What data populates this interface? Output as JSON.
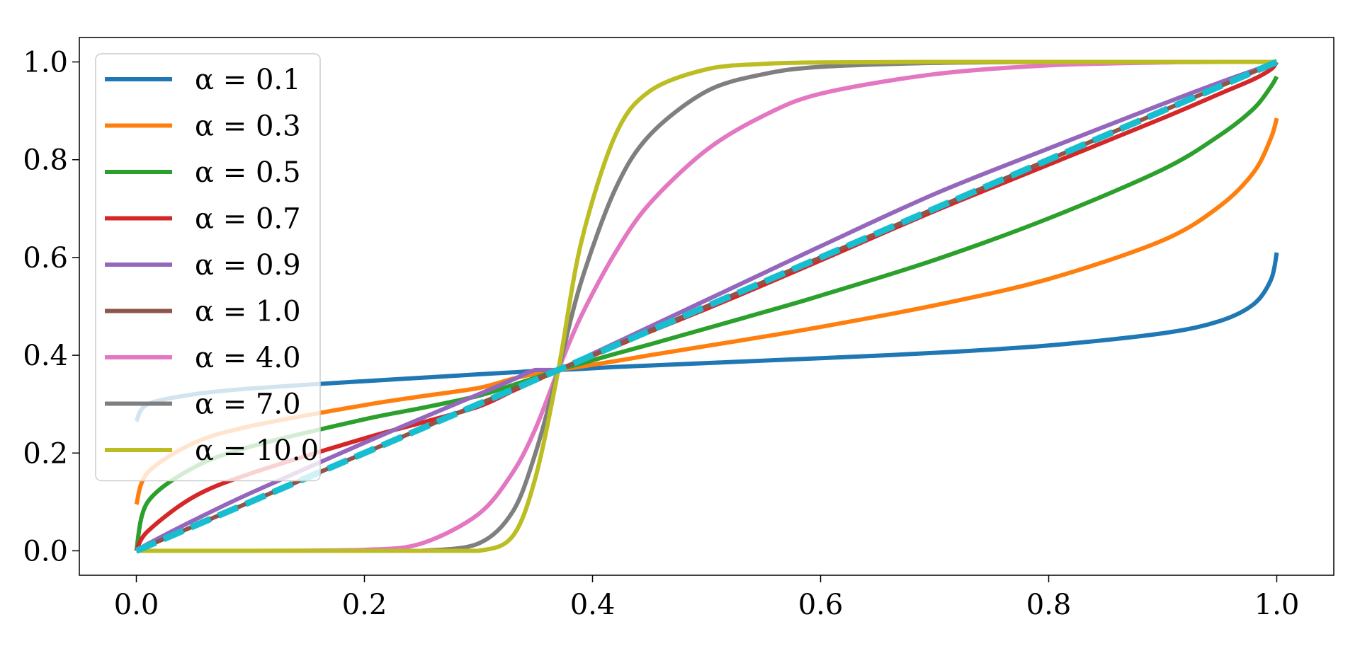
{
  "chart_data": {
    "type": "line",
    "title": "",
    "xlabel": "",
    "ylabel": "",
    "xlim": [
      -0.05,
      1.05
    ],
    "ylim": [
      -0.05,
      1.05
    ],
    "grid": false,
    "legend_position": "upper-left",
    "x_ticks": [
      {
        "value": 0.0,
        "label": "0.0"
      },
      {
        "value": 0.2,
        "label": "0.2"
      },
      {
        "value": 0.4,
        "label": "0.4"
      },
      {
        "value": 0.6,
        "label": "0.6"
      },
      {
        "value": 0.8,
        "label": "0.8"
      },
      {
        "value": 1.0,
        "label": "1.0"
      }
    ],
    "y_ticks": [
      {
        "value": 0.0,
        "label": "0.0"
      },
      {
        "value": 0.2,
        "label": "0.2"
      },
      {
        "value": 0.4,
        "label": "0.4"
      },
      {
        "value": 0.6,
        "label": "0.6"
      },
      {
        "value": 0.8,
        "label": "0.8"
      },
      {
        "value": 1.0,
        "label": "1.0"
      }
    ],
    "x": [
      0.0,
      0.01,
      0.05,
      0.1,
      0.2,
      0.25,
      0.3,
      0.33,
      0.35,
      0.37,
      0.39,
      0.42,
      0.45,
      0.5,
      0.55,
      0.6,
      0.7,
      0.8,
      0.9,
      0.95,
      0.98,
      0.995,
      1.0
    ],
    "series": [
      {
        "name": "α = 0.1",
        "color": "#1f77b4",
        "style": "solid",
        "values": [
          0.265,
          0.3,
          0.32,
          0.332,
          0.347,
          0.354,
          0.361,
          0.365,
          0.368,
          0.37,
          0.372,
          0.376,
          0.379,
          0.384,
          0.389,
          0.394,
          0.405,
          0.42,
          0.445,
          0.47,
          0.505,
          0.555,
          0.61
        ]
      },
      {
        "name": "α = 0.3",
        "color": "#ff7f0e",
        "style": "solid",
        "values": [
          0.095,
          0.16,
          0.22,
          0.255,
          0.298,
          0.316,
          0.333,
          0.352,
          0.362,
          0.37,
          0.377,
          0.388,
          0.4,
          0.419,
          0.438,
          0.458,
          0.502,
          0.556,
          0.635,
          0.705,
          0.775,
          0.845,
          0.885
        ]
      },
      {
        "name": "α = 0.5",
        "color": "#2ca02c",
        "style": "solid",
        "values": [
          0.0,
          0.1,
          0.17,
          0.213,
          0.269,
          0.292,
          0.317,
          0.339,
          0.354,
          0.37,
          0.383,
          0.403,
          0.422,
          0.455,
          0.488,
          0.522,
          0.595,
          0.68,
          0.78,
          0.85,
          0.905,
          0.95,
          0.97
        ]
      },
      {
        "name": "α = 0.7",
        "color": "#d62728",
        "style": "solid",
        "values": [
          0.0,
          0.04,
          0.11,
          0.158,
          0.23,
          0.262,
          0.295,
          0.327,
          0.348,
          0.37,
          0.39,
          0.418,
          0.448,
          0.495,
          0.544,
          0.594,
          0.695,
          0.79,
          0.885,
          0.935,
          0.965,
          0.985,
          1.0
        ]
      },
      {
        "name": "α = 0.9",
        "color": "#9467bd",
        "style": "solid",
        "values": [
          0.0,
          0.014,
          0.062,
          0.118,
          0.221,
          0.271,
          0.32,
          0.35,
          0.37,
          0.37,
          0.392,
          0.425,
          0.458,
          0.513,
          0.568,
          0.623,
          0.73,
          0.823,
          0.914,
          0.958,
          0.983,
          0.996,
          1.0
        ]
      },
      {
        "name": "α = 1.0",
        "color": "#8c564b",
        "style": "solid",
        "values": [
          0.0,
          0.01,
          0.05,
          0.1,
          0.2,
          0.25,
          0.3,
          0.33,
          0.35,
          0.37,
          0.39,
          0.42,
          0.45,
          0.5,
          0.55,
          0.6,
          0.7,
          0.8,
          0.9,
          0.95,
          0.98,
          0.995,
          1.0
        ]
      },
      {
        "name": "α = 4.0",
        "color": "#e377c2",
        "style": "solid",
        "values": [
          0.0,
          0.0,
          0.0,
          0.0,
          0.002,
          0.015,
          0.075,
          0.16,
          0.25,
          0.37,
          0.48,
          0.61,
          0.71,
          0.82,
          0.89,
          0.935,
          0.975,
          0.993,
          0.999,
          1.0,
          1.0,
          1.0,
          1.0
        ]
      },
      {
        "name": "α = 7.0",
        "color": "#7f7f7f",
        "style": "solid",
        "values": [
          0.0,
          0.0,
          0.0,
          0.0,
          0.0,
          0.0,
          0.015,
          0.08,
          0.2,
          0.37,
          0.55,
          0.74,
          0.85,
          0.94,
          0.975,
          0.99,
          0.998,
          1.0,
          1.0,
          1.0,
          1.0,
          1.0,
          1.0
        ]
      },
      {
        "name": "α = 10.0",
        "color": "#bcbd22",
        "style": "solid",
        "values": [
          0.0,
          0.0,
          0.0,
          0.0,
          0.0,
          0.0,
          0.0,
          0.03,
          0.15,
          0.37,
          0.63,
          0.85,
          0.94,
          0.985,
          0.996,
          0.999,
          1.0,
          1.0,
          1.0,
          1.0,
          1.0,
          1.0,
          1.0
        ]
      },
      {
        "name": "",
        "color": "#17becf",
        "style": "dashed",
        "values": [
          0.0,
          0.01,
          0.05,
          0.1,
          0.2,
          0.25,
          0.3,
          0.33,
          0.35,
          0.37,
          0.39,
          0.42,
          0.45,
          0.5,
          0.55,
          0.6,
          0.7,
          0.8,
          0.9,
          0.95,
          0.98,
          0.995,
          1.0
        ]
      }
    ]
  }
}
